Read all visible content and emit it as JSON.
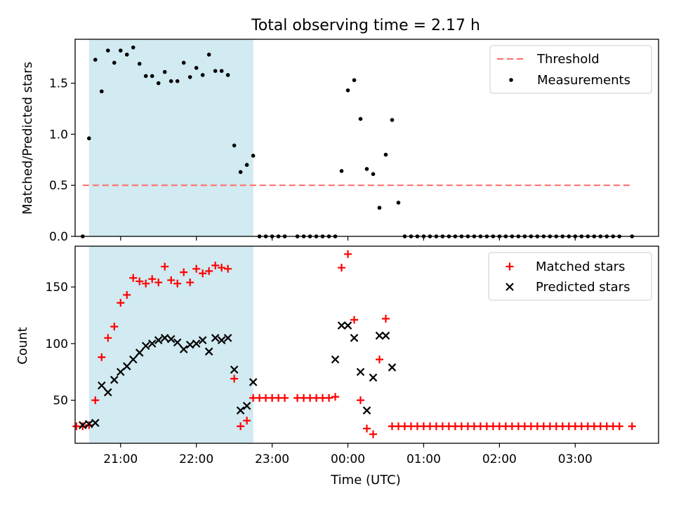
{
  "figure": {
    "title": "Total observing time = 2.17 h",
    "xlabel": "Time (UTC)"
  },
  "chart_data": [
    {
      "type": "scatter",
      "ylabel": "Matched/Predicted stars",
      "ylim": [
        0,
        1.93
      ],
      "xlim": [
        "20:24",
        "04:06"
      ],
      "yticks": [
        0.0,
        0.5,
        1.0,
        1.5
      ],
      "ytick_labels": [
        "0.0",
        "0.5",
        "1.0",
        "1.5"
      ],
      "grid": false,
      "legend_position": "top-right",
      "highlight_span": {
        "start": "20:35",
        "end": "22:45",
        "color": "#add8e6"
      },
      "threshold": {
        "name": "Threshold",
        "y": 0.5,
        "x_start": "20:30",
        "x_end": "03:45",
        "color": "#ff7070"
      },
      "series": [
        {
          "name": "Measurements",
          "color": "#000000",
          "points": [
            [
              "20:30",
              0.0
            ],
            [
              "20:35",
              0.96
            ],
            [
              "20:40",
              1.73
            ],
            [
              "20:45",
              1.42
            ],
            [
              "20:50",
              1.82
            ],
            [
              "20:55",
              1.7
            ],
            [
              "21:00",
              1.82
            ],
            [
              "21:05",
              1.78
            ],
            [
              "21:10",
              1.85
            ],
            [
              "21:15",
              1.69
            ],
            [
              "21:20",
              1.57
            ],
            [
              "21:25",
              1.57
            ],
            [
              "21:30",
              1.5
            ],
            [
              "21:35",
              1.61
            ],
            [
              "21:40",
              1.52
            ],
            [
              "21:45",
              1.52
            ],
            [
              "21:50",
              1.7
            ],
            [
              "21:55",
              1.56
            ],
            [
              "22:00",
              1.65
            ],
            [
              "22:05",
              1.58
            ],
            [
              "22:10",
              1.78
            ],
            [
              "22:15",
              1.62
            ],
            [
              "22:20",
              1.62
            ],
            [
              "22:25",
              1.58
            ],
            [
              "22:30",
              0.89
            ],
            [
              "22:35",
              0.63
            ],
            [
              "22:40",
              0.7
            ],
            [
              "22:45",
              0.79
            ],
            [
              "22:50",
              0.0
            ],
            [
              "22:55",
              0.0
            ],
            [
              "23:00",
              0.0
            ],
            [
              "23:05",
              0.0
            ],
            [
              "23:10",
              0.0
            ],
            [
              "23:20",
              0.0
            ],
            [
              "23:25",
              0.0
            ],
            [
              "23:30",
              0.0
            ],
            [
              "23:35",
              0.0
            ],
            [
              "23:40",
              0.0
            ],
            [
              "23:45",
              0.0
            ],
            [
              "23:50",
              0.0
            ],
            [
              "23:55",
              0.64
            ],
            [
              "00:00",
              1.43
            ],
            [
              "00:05",
              1.53
            ],
            [
              "00:10",
              1.15
            ],
            [
              "00:15",
              0.66
            ],
            [
              "00:20",
              0.61
            ],
            [
              "00:25",
              0.28
            ],
            [
              "00:30",
              0.8
            ],
            [
              "00:35",
              1.14
            ],
            [
              "00:40",
              0.33
            ],
            [
              "00:45",
              0.0
            ],
            [
              "00:50",
              0.0
            ],
            [
              "00:55",
              0.0
            ],
            [
              "01:00",
              0.0
            ],
            [
              "01:05",
              0.0
            ],
            [
              "01:10",
              0.0
            ],
            [
              "01:15",
              0.0
            ],
            [
              "01:20",
              0.0
            ],
            [
              "01:25",
              0.0
            ],
            [
              "01:30",
              0.0
            ],
            [
              "01:35",
              0.0
            ],
            [
              "01:40",
              0.0
            ],
            [
              "01:45",
              0.0
            ],
            [
              "01:50",
              0.0
            ],
            [
              "01:55",
              0.0
            ],
            [
              "02:00",
              0.0
            ],
            [
              "02:05",
              0.0
            ],
            [
              "02:10",
              0.0
            ],
            [
              "02:15",
              0.0
            ],
            [
              "02:20",
              0.0
            ],
            [
              "02:25",
              0.0
            ],
            [
              "02:30",
              0.0
            ],
            [
              "02:35",
              0.0
            ],
            [
              "02:40",
              0.0
            ],
            [
              "02:45",
              0.0
            ],
            [
              "02:50",
              0.0
            ],
            [
              "02:55",
              0.0
            ],
            [
              "03:00",
              0.0
            ],
            [
              "03:05",
              0.0
            ],
            [
              "03:10",
              0.0
            ],
            [
              "03:15",
              0.0
            ],
            [
              "03:20",
              0.0
            ],
            [
              "03:25",
              0.0
            ],
            [
              "03:30",
              0.0
            ],
            [
              "03:35",
              0.0
            ],
            [
              "03:45",
              0.0
            ]
          ]
        }
      ]
    },
    {
      "type": "scatter",
      "ylabel": "Count",
      "ylim": [
        12,
        186
      ],
      "xlim": [
        "20:24",
        "04:06"
      ],
      "yticks": [
        50,
        100,
        150
      ],
      "ytick_labels": [
        "50",
        "100",
        "150"
      ],
      "xticks": [
        "21:00",
        "22:00",
        "23:00",
        "00:00",
        "01:00",
        "02:00",
        "03:00"
      ],
      "grid": false,
      "legend_position": "top-right",
      "highlight_span": {
        "start": "20:35",
        "end": "22:45",
        "color": "#add8e6"
      },
      "series": [
        {
          "name": "Matched stars",
          "marker": "+",
          "color": "#ff0000",
          "points": [
            [
              "20:25",
              27
            ],
            [
              "20:30",
              27
            ],
            [
              "20:35",
              28
            ],
            [
              "20:40",
              50
            ],
            [
              "20:45",
              88
            ],
            [
              "20:50",
              105
            ],
            [
              "20:55",
              115
            ],
            [
              "21:00",
              136
            ],
            [
              "21:05",
              143
            ],
            [
              "21:10",
              158
            ],
            [
              "21:15",
              155
            ],
            [
              "21:20",
              153
            ],
            [
              "21:25",
              157
            ],
            [
              "21:30",
              154
            ],
            [
              "21:35",
              168
            ],
            [
              "21:40",
              156
            ],
            [
              "21:45",
              153
            ],
            [
              "21:50",
              163
            ],
            [
              "21:55",
              154
            ],
            [
              "22:00",
              166
            ],
            [
              "22:05",
              162
            ],
            [
              "22:10",
              164
            ],
            [
              "22:15",
              169
            ],
            [
              "22:20",
              167
            ],
            [
              "22:25",
              166
            ],
            [
              "22:30",
              69
            ],
            [
              "22:35",
              27
            ],
            [
              "22:40",
              32
            ],
            [
              "22:45",
              52
            ],
            [
              "22:50",
              52
            ],
            [
              "22:55",
              52
            ],
            [
              "23:00",
              52
            ],
            [
              "23:05",
              52
            ],
            [
              "23:10",
              52
            ],
            [
              "23:20",
              52
            ],
            [
              "23:25",
              52
            ],
            [
              "23:30",
              52
            ],
            [
              "23:35",
              52
            ],
            [
              "23:40",
              52
            ],
            [
              "23:45",
              52
            ],
            [
              "23:50",
              53
            ],
            [
              "23:55",
              167
            ],
            [
              "00:00",
              179
            ],
            [
              "00:05",
              121
            ],
            [
              "00:10",
              50
            ],
            [
              "00:15",
              25
            ],
            [
              "00:20",
              20
            ],
            [
              "00:25",
              86
            ],
            [
              "00:30",
              122
            ],
            [
              "00:35",
              27
            ],
            [
              "00:40",
              27
            ],
            [
              "00:45",
              27
            ],
            [
              "00:50",
              27
            ],
            [
              "00:55",
              27
            ],
            [
              "01:00",
              27
            ],
            [
              "01:05",
              27
            ],
            [
              "01:10",
              27
            ],
            [
              "01:15",
              27
            ],
            [
              "01:20",
              27
            ],
            [
              "01:25",
              27
            ],
            [
              "01:30",
              27
            ],
            [
              "01:35",
              27
            ],
            [
              "01:40",
              27
            ],
            [
              "01:45",
              27
            ],
            [
              "01:50",
              27
            ],
            [
              "01:55",
              27
            ],
            [
              "02:00",
              27
            ],
            [
              "02:05",
              27
            ],
            [
              "02:10",
              27
            ],
            [
              "02:15",
              27
            ],
            [
              "02:20",
              27
            ],
            [
              "02:25",
              27
            ],
            [
              "02:30",
              27
            ],
            [
              "02:35",
              27
            ],
            [
              "02:40",
              27
            ],
            [
              "02:45",
              27
            ],
            [
              "02:50",
              27
            ],
            [
              "02:55",
              27
            ],
            [
              "03:00",
              27
            ],
            [
              "03:05",
              27
            ],
            [
              "03:10",
              27
            ],
            [
              "03:15",
              27
            ],
            [
              "03:20",
              27
            ],
            [
              "03:25",
              27
            ],
            [
              "03:30",
              27
            ],
            [
              "03:35",
              27
            ],
            [
              "03:45",
              27
            ]
          ]
        },
        {
          "name": "Predicted stars",
          "marker": "x",
          "color": "#000000",
          "points": [
            [
              "20:30",
              28
            ],
            [
              "20:35",
              29
            ],
            [
              "20:40",
              30
            ],
            [
              "20:45",
              63
            ],
            [
              "20:50",
              57
            ],
            [
              "20:55",
              68
            ],
            [
              "21:00",
              75
            ],
            [
              "21:05",
              80
            ],
            [
              "21:10",
              86
            ],
            [
              "21:15",
              92
            ],
            [
              "21:20",
              98
            ],
            [
              "21:25",
              100
            ],
            [
              "21:30",
              103
            ],
            [
              "21:35",
              105
            ],
            [
              "21:40",
              104
            ],
            [
              "21:45",
              101
            ],
            [
              "21:50",
              95
            ],
            [
              "21:55",
              99
            ],
            [
              "22:00",
              100
            ],
            [
              "22:05",
              103
            ],
            [
              "22:10",
              93
            ],
            [
              "22:15",
              105
            ],
            [
              "22:20",
              103
            ],
            [
              "22:25",
              105
            ],
            [
              "22:30",
              77
            ],
            [
              "22:35",
              41
            ],
            [
              "22:40",
              45
            ],
            [
              "22:45",
              66
            ],
            [
              "23:50",
              86
            ],
            [
              "23:55",
              116
            ],
            [
              "00:00",
              116
            ],
            [
              "00:05",
              105
            ],
            [
              "00:10",
              75
            ],
            [
              "00:15",
              41
            ],
            [
              "00:20",
              70
            ],
            [
              "00:25",
              107
            ],
            [
              "00:30",
              107
            ],
            [
              "00:35",
              79
            ]
          ]
        }
      ]
    }
  ]
}
